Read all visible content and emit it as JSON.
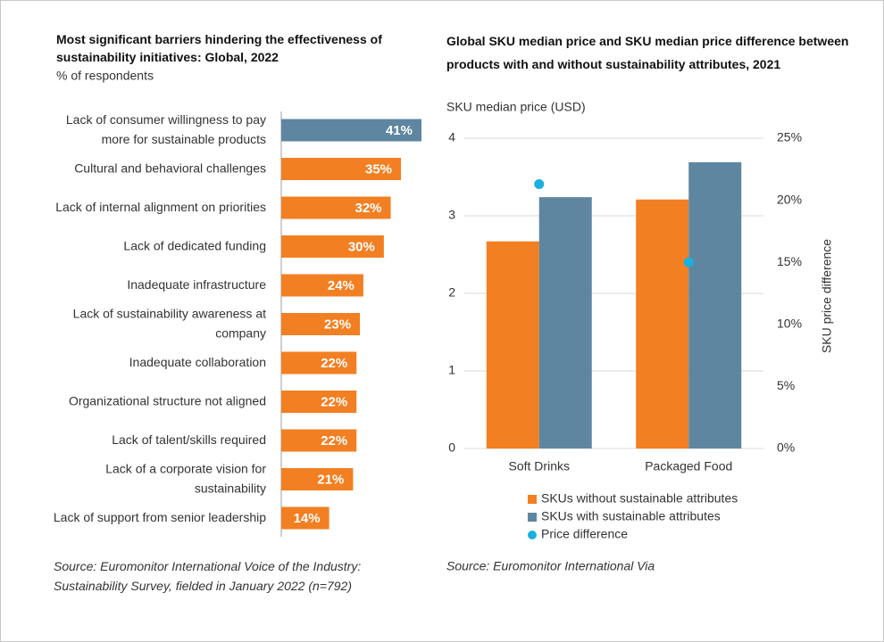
{
  "chart_data": [
    {
      "type": "hbar",
      "title": "Most significant barriers hindering the effectiveness of sustainability initiatives: Global, 2022",
      "subtitle": "% of respondents",
      "categories": [
        "Lack of consumer willingness to pay more for sustainable products",
        "Cultural and behavioral challenges",
        "Lack of internal alignment on priorities",
        "Lack of dedicated funding",
        "Inadequate infrastructure",
        "Lack of sustainability awareness at company",
        "Inadequate collaboration",
        "Organizational structure not aligned",
        "Lack of talent/skills required",
        "Lack of a corporate vision for sustainability",
        "Lack of support from senior leadership"
      ],
      "values": [
        41,
        35,
        32,
        30,
        24,
        23,
        22,
        22,
        22,
        21,
        14
      ],
      "value_labels": [
        "41%",
        "35%",
        "32%",
        "30%",
        "24%",
        "23%",
        "22%",
        "22%",
        "22%",
        "21%",
        "14%"
      ],
      "colors": [
        "#5f86a0",
        "#f27f22",
        "#f27f22",
        "#f27f22",
        "#f27f22",
        "#f27f22",
        "#f27f22",
        "#f27f22",
        "#f27f22",
        "#f27f22",
        "#f27f22"
      ],
      "source": "Source: Euromonitor International Voice of the Industry: Sustainability Survey, fielded in January 2022 (n=792)"
    },
    {
      "type": "bar",
      "title": "Global SKU median price and SKU median price difference between products with and without sustainability attributes, 2021",
      "ylabel": "SKU median price (USD)",
      "y2label": "SKU price difference",
      "categories": [
        "Soft Drinks",
        "Packaged Food"
      ],
      "series": [
        {
          "name": "SKUs without sustainable attributes",
          "color": "#f27f22",
          "values": [
            2.67,
            3.21
          ]
        },
        {
          "name": "SKUs with sustainable attributes",
          "color": "#5f86a0",
          "values": [
            3.24,
            3.69
          ]
        },
        {
          "name": "Price difference",
          "color": "#1ab0e0",
          "values": [
            21.3,
            15.0
          ],
          "axis": "y2",
          "kind": "scatter"
        }
      ],
      "ylim": [
        0,
        4
      ],
      "yticks": [
        0,
        1,
        2,
        3,
        4
      ],
      "y2lim": [
        0,
        25
      ],
      "y2ticks": [
        {
          "value": 0,
          "label": "0%"
        },
        {
          "value": 5,
          "label": "5%"
        },
        {
          "value": 10,
          "label": "10%"
        },
        {
          "value": 15,
          "label": "15%"
        },
        {
          "value": 20,
          "label": "20%"
        },
        {
          "value": 25,
          "label": "25%"
        }
      ],
      "grid": true,
      "source": "Source: Euromonitor International Via"
    }
  ]
}
